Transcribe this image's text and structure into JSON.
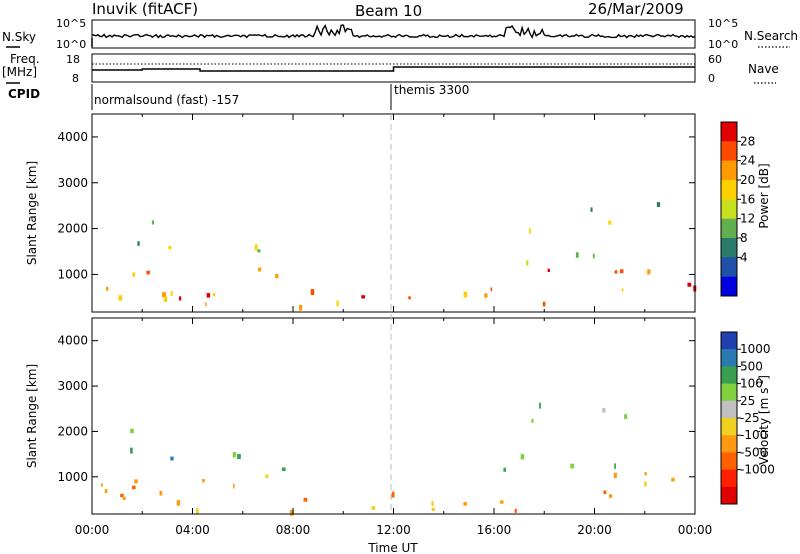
{
  "header": {
    "station": "Inuvik (fitACF)",
    "beam": "Beam 10",
    "date": "26/Mar/2009"
  },
  "summary_panels": {
    "nsky_label": "N.Sky",
    "nsearch_label": "N.Search",
    "nsky_ticks": [
      "10^5",
      "10^0"
    ],
    "nsky_right_ticks": [
      "10^5",
      "10^0"
    ],
    "freq_label_line1": "Freq.",
    "freq_label_line2": "[MHz]",
    "freq_ticks": [
      "18",
      "8"
    ],
    "nave_label": "Nave",
    "nave_ticks": [
      "60",
      "0"
    ],
    "cpid_label": "CPID",
    "cpid_segments": [
      "normalsound (fast) -157",
      "themis 3300"
    ]
  },
  "chart_data": [
    {
      "type": "heatmap",
      "name": "power",
      "ylabel": "Slant Range [km]",
      "y_ticks": [
        1000,
        2000,
        3000,
        4000
      ],
      "ylim": [
        180,
        4500
      ],
      "xlim_hours": [
        0,
        24
      ],
      "colorbar_label": "Power [dB]",
      "colorbar_ticks": [
        "28",
        "24",
        "20",
        "16",
        "12",
        "8",
        "4"
      ],
      "colorbar_colors": [
        "#e00000",
        "#ff4a00",
        "#ff9a00",
        "#ffd000",
        "#c8e020",
        "#60b050",
        "#2a7a6a",
        "#2050a8",
        "#0000e0"
      ]
    },
    {
      "type": "heatmap",
      "name": "velocity",
      "ylabel": "Slant Range [km]",
      "y_ticks": [
        1000,
        2000,
        3000,
        4000
      ],
      "ylim": [
        180,
        4500
      ],
      "xlim_hours": [
        0,
        24
      ],
      "xlabel": "Time UT",
      "x_ticks": [
        "00:00",
        "04:00",
        "08:00",
        "12:00",
        "16:00",
        "20:00",
        "00:00"
      ],
      "colorbar_label": "Velocity [m s",
      "colorbar_label_sup": "-1",
      "colorbar_label_end": "]",
      "colorbar_ticks": [
        "1000",
        "500",
        "100",
        "25",
        "-25",
        "-100",
        "-500",
        "-1000"
      ],
      "colorbar_colors": [
        "#2040b0",
        "#2a7ab0",
        "#3aa050",
        "#80d040",
        "#c0c0c0",
        "#f0d020",
        "#ff9a10",
        "#ff6000",
        "#ff2000",
        "#e00000"
      ]
    }
  ]
}
